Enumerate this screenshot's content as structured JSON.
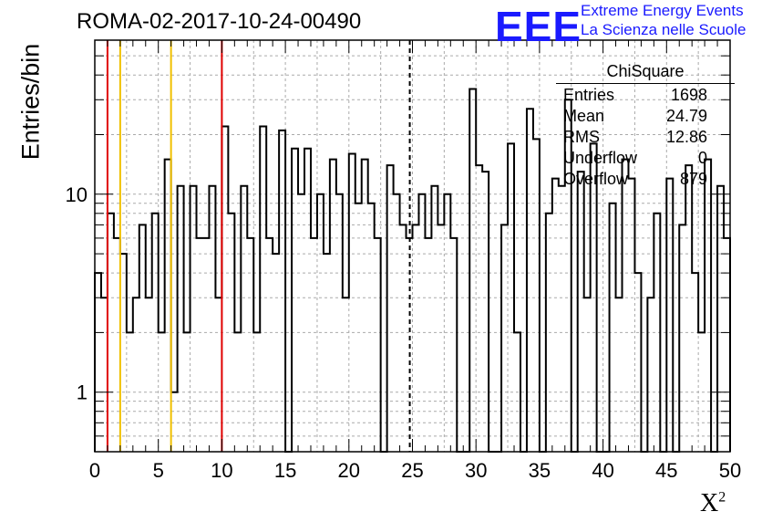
{
  "header": {
    "title": "ROMA-02-2017-10-24-00490",
    "logo_text": "EEE",
    "logo_line1": "Extreme Energy Events",
    "logo_line2": "La Scienza nelle Scuole"
  },
  "stats": {
    "title": "ChiSquare",
    "rows": [
      {
        "label": "Entries",
        "value": "1698"
      },
      {
        "label": "Mean",
        "value": "24.79"
      },
      {
        "label": "RMS",
        "value": "12.86"
      },
      {
        "label": "Underflow",
        "value": "0"
      },
      {
        "label": "Overflow",
        "value": "879"
      }
    ]
  },
  "chart_data": {
    "type": "histogram",
    "xlabel": "X",
    "xlabel_sup": "2",
    "ylabel": "Entries/bin",
    "xlim": [
      0,
      50
    ],
    "ylim": [
      0.5,
      60
    ],
    "yscale": "log",
    "grid": true,
    "bin_width": 0.5,
    "x_ticks": [
      0,
      5,
      10,
      15,
      20,
      25,
      30,
      35,
      40,
      45,
      50
    ],
    "y_ticks": [
      1,
      10
    ],
    "counts": [
      4,
      3,
      8,
      6,
      5,
      2,
      3,
      7,
      3,
      8,
      2,
      15,
      1,
      11,
      2,
      11,
      6,
      6,
      11,
      3,
      22,
      8,
      2,
      11,
      6,
      2,
      22,
      6,
      5,
      21,
      0,
      17,
      10,
      17,
      6,
      10,
      5,
      15,
      10,
      3,
      16,
      9,
      15,
      9,
      6,
      0,
      14,
      10,
      7,
      6,
      7,
      10,
      6,
      11,
      7,
      10,
      6,
      0,
      0,
      34,
      14,
      13,
      0,
      0,
      7,
      18,
      2,
      0,
      27,
      19,
      0,
      8,
      12,
      11,
      30,
      0,
      13,
      3,
      18,
      0,
      0,
      9,
      3,
      15,
      12,
      4,
      0,
      3,
      8,
      0,
      12,
      0,
      7,
      14,
      4,
      2,
      15,
      0,
      11,
      6
    ],
    "vlines": [
      {
        "x": 1,
        "color": "#e00000",
        "style": "solid"
      },
      {
        "x": 2,
        "color": "#f0c000",
        "style": "solid"
      },
      {
        "x": 6,
        "color": "#f0c000",
        "style": "solid"
      },
      {
        "x": 10,
        "color": "#e00000",
        "style": "solid"
      },
      {
        "x": 24.79,
        "color": "#000000",
        "style": "dashed"
      }
    ]
  }
}
